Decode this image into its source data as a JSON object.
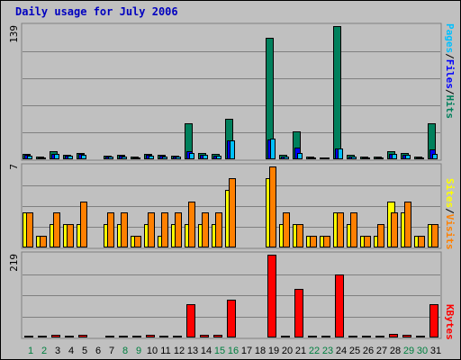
{
  "title": "Daily usage for July 2006",
  "colors": {
    "hits": "#00805c",
    "files": "#0000ff",
    "pages": "#00c0ff",
    "visits": "#ff8000",
    "sites": "#ffff00",
    "kbytes": "#ff0000",
    "weekday_label": "#000000",
    "weekend_label": "#008040"
  },
  "labels": {
    "pages": "Pages",
    "files": "Files",
    "hits": "Hits",
    "sites": "Sites",
    "visits": "Visits",
    "kbytes": "KBytes",
    "sep": "/"
  },
  "chart_data": {
    "type": "bar",
    "title": "Daily usage for July 2006",
    "categories": [
      "1",
      "2",
      "3",
      "4",
      "5",
      "6",
      "7",
      "8",
      "9",
      "10",
      "11",
      "12",
      "13",
      "14",
      "15",
      "16",
      "17",
      "18",
      "19",
      "20",
      "21",
      "22",
      "23",
      "24",
      "25",
      "26",
      "27",
      "28",
      "29",
      "30",
      "31"
    ],
    "weekend_days": [
      1,
      2,
      8,
      9,
      15,
      16,
      22,
      23,
      29,
      30
    ],
    "panels": [
      {
        "id": "top",
        "ymax_label": "139",
        "ylim": [
          0,
          139
        ],
        "series": [
          {
            "name": "Hits",
            "values": [
              6,
              3,
              8,
              5,
              7,
              0,
              4,
              5,
              3,
              6,
              5,
              4,
              38,
              7,
              6,
              42,
              0,
              0,
              127,
              5,
              29,
              3,
              2,
              139,
              5,
              3,
              3,
              8,
              7,
              3,
              38
            ]
          },
          {
            "name": "Files",
            "values": [
              5,
              2,
              6,
              4,
              6,
              0,
              3,
              4,
              2,
              5,
              4,
              3,
              8,
              5,
              4,
              20,
              0,
              0,
              21,
              3,
              12,
              2,
              1,
              11,
              3,
              2,
              2,
              6,
              5,
              2,
              10
            ]
          },
          {
            "name": "Pages",
            "values": [
              4,
              2,
              6,
              4,
              5,
              0,
              3,
              3,
              2,
              4,
              3,
              3,
              7,
              5,
              4,
              20,
              0,
              0,
              22,
              3,
              7,
              2,
              1,
              11,
              3,
              2,
              2,
              6,
              5,
              2,
              6
            ]
          }
        ]
      },
      {
        "id": "middle",
        "ymax_label": "7",
        "ylim": [
          0,
          7
        ],
        "series": [
          {
            "name": "Sites",
            "values": [
              3,
              1,
              2,
              2,
              2,
              0,
              2,
              2,
              1,
              2,
              1,
              2,
              2,
              2,
              2,
              5,
              0,
              0,
              6,
              2,
              2,
              1,
              1,
              3,
              2,
              1,
              1,
              4,
              3,
              1,
              2
            ]
          },
          {
            "name": "Visits",
            "values": [
              3,
              1,
              3,
              2,
              4,
              0,
              3,
              3,
              1,
              3,
              3,
              3,
              4,
              3,
              3,
              6,
              0,
              0,
              7,
              3,
              2,
              1,
              1,
              3,
              3,
              1,
              2,
              3,
              4,
              1,
              2
            ]
          }
        ]
      },
      {
        "id": "bottom",
        "ymax_label": "219",
        "ylim": [
          0,
          219
        ],
        "series": [
          {
            "name": "KBytes",
            "values": [
              4,
              3,
              8,
              3,
              8,
              0,
              3,
              4,
              3,
              8,
              3,
              3,
              87,
              8,
              6,
              99,
              0,
              0,
              219,
              3,
              128,
              2,
              2,
              167,
              5,
              3,
              3,
              10,
              6,
              3,
              88
            ]
          }
        ]
      }
    ]
  }
}
